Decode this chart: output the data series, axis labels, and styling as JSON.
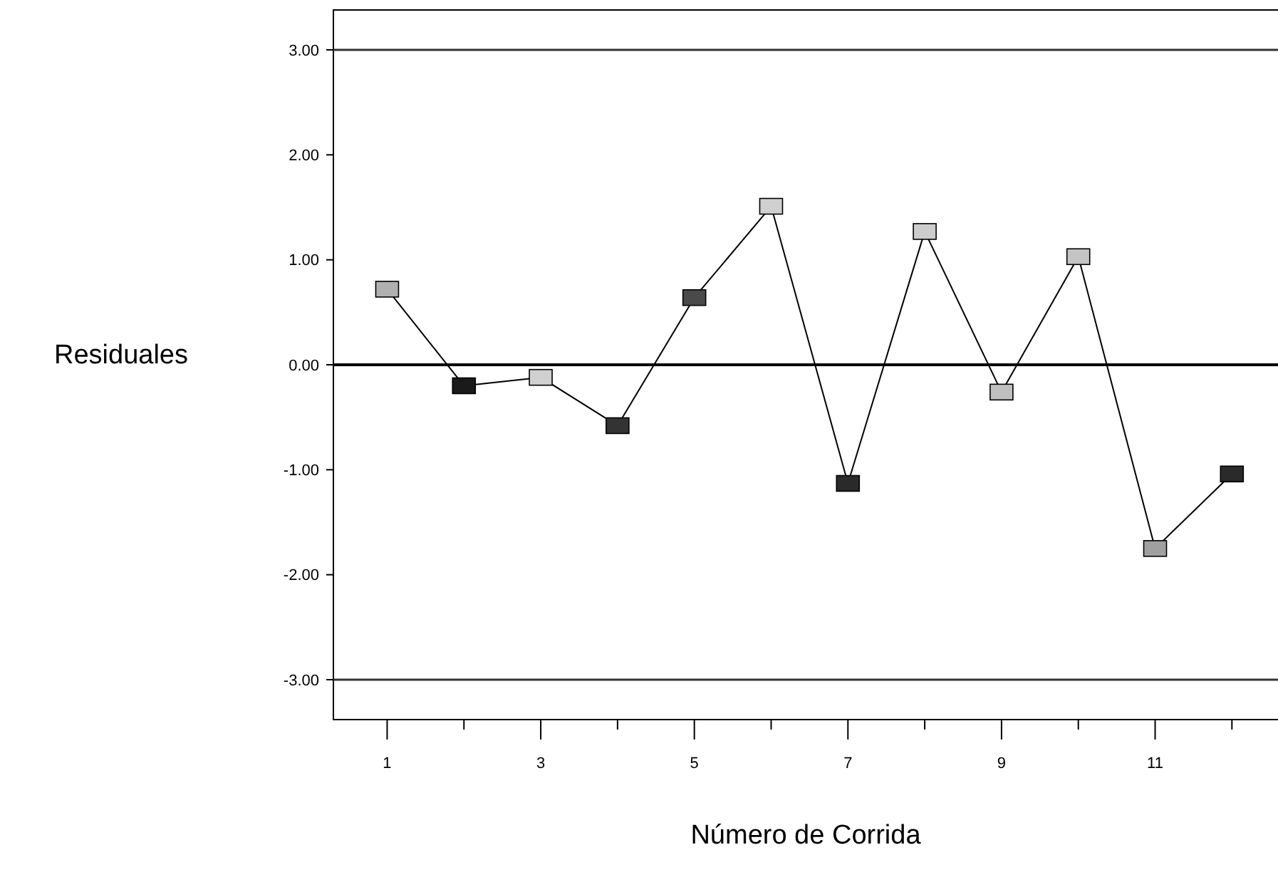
{
  "chart_data": {
    "type": "line",
    "xlabel": "Número de Corrida",
    "ylabel": "Residuales",
    "x": [
      1,
      2,
      3,
      4,
      5,
      6,
      7,
      8,
      9,
      10,
      11,
      12
    ],
    "series": [
      {
        "color": "#000000",
        "colors": [
          "#b0b0b0",
          "#1a1a1a",
          "#d0d0d0",
          "#333333",
          "#4a4a4a",
          "#d0d0d0",
          "#2a2a2a",
          "#cccccc",
          "#c0c0c0",
          "#c4c4c4",
          "#a0a0a0",
          "#2a2a2a"
        ],
        "values": [
          0.72,
          -0.2,
          -0.12,
          -0.58,
          0.64,
          1.51,
          -1.13,
          1.27,
          -0.26,
          1.03,
          -1.75,
          -1.04
        ]
      }
    ],
    "xlim": [
      0.3,
      12.6
    ],
    "ylim": [
      -3.38,
      3.38
    ],
    "xticks": [
      1,
      {
        "value": 2,
        "label": null
      },
      3,
      {
        "value": 4,
        "label": null
      },
      5,
      {
        "value": 6,
        "label": null
      },
      7,
      {
        "value": 8,
        "label": null
      },
      9,
      {
        "value": 10,
        "label": null
      },
      11,
      {
        "value": 12,
        "label": null
      }
    ],
    "yticks": [
      {
        "value": -3,
        "label": "-3.00"
      },
      {
        "value": -2,
        "label": "-2.00"
      },
      {
        "value": -1,
        "label": "-1.00"
      },
      {
        "value": 0,
        "label": "0.00"
      },
      {
        "value": 1,
        "label": "1.00"
      },
      {
        "value": 2,
        "label": "2.00"
      },
      {
        "value": 3,
        "label": "3.00"
      }
    ],
    "ref_lines": [
      {
        "axis": "y",
        "value": 3,
        "color": "#333333"
      },
      {
        "axis": "y",
        "value": 0,
        "color": "#000000"
      },
      {
        "axis": "y",
        "value": -3,
        "color": "#333333"
      }
    ],
    "marker": "square",
    "line_style": "solid"
  }
}
